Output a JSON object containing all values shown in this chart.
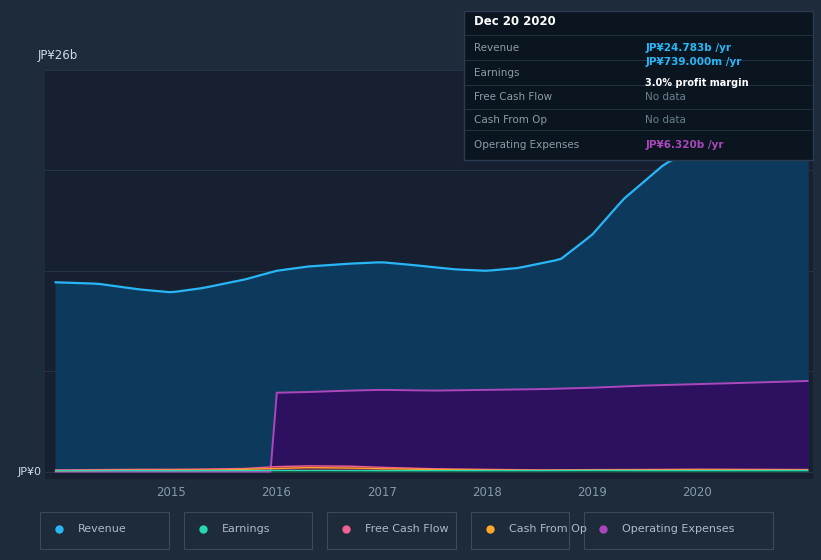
{
  "bg_color": "#1e2b3a",
  "panel_bg": "#162030",
  "grid_color": "#2a3a4e",
  "title_label": "JP¥26b",
  "zero_label": "JP¥0",
  "x_ticks": [
    "2015",
    "2016",
    "2017",
    "2018",
    "2019",
    "2020"
  ],
  "x_tick_positions": [
    2015,
    2016,
    2017,
    2018,
    2019,
    2020
  ],
  "revenue_color": "#29b6f6",
  "revenue_fill": "#0d3a5c",
  "earnings_color": "#26d9b0",
  "earnings_fill": "#1a8a70",
  "free_cashflow_color": "#f06292",
  "free_cashflow_fill": "#8b3060",
  "cash_from_op_color": "#ffa726",
  "cash_from_op_fill": "#7a4a10",
  "op_expenses_color": "#ab47bc",
  "op_expenses_fill": "#2e1060",
  "legend_items": [
    "Revenue",
    "Earnings",
    "Free Cash Flow",
    "Cash From Op",
    "Operating Expenses"
  ],
  "legend_colors": [
    "#29b6f6",
    "#26d9b0",
    "#f06292",
    "#ffa726",
    "#ab47bc"
  ],
  "tooltip_bg": "#0a1520",
  "tooltip_border": "#2a3a50",
  "tooltip_title": "Dec 20 2020",
  "tooltip_revenue_label": "Revenue",
  "tooltip_revenue_value": "JP¥24.783b /yr",
  "tooltip_earnings_label": "Earnings",
  "tooltip_earnings_value": "JP¥739.000m /yr",
  "tooltip_margin": "3.0% profit margin",
  "tooltip_fcf_label": "Free Cash Flow",
  "tooltip_fcf_value": "No data",
  "tooltip_cop_label": "Cash From Op",
  "tooltip_cop_value": "No data",
  "tooltip_opex_label": "Operating Expenses",
  "tooltip_opex_value": "JP¥6.320b /yr",
  "revenue_value_color": "#29b6f6",
  "earnings_value_color": "#29b6f6",
  "opex_value_color": "#ab47bc",
  "nodata_color": "#6a8090",
  "ylim_max": 28,
  "xlim_min": 2013.8,
  "xlim_max": 2021.1
}
